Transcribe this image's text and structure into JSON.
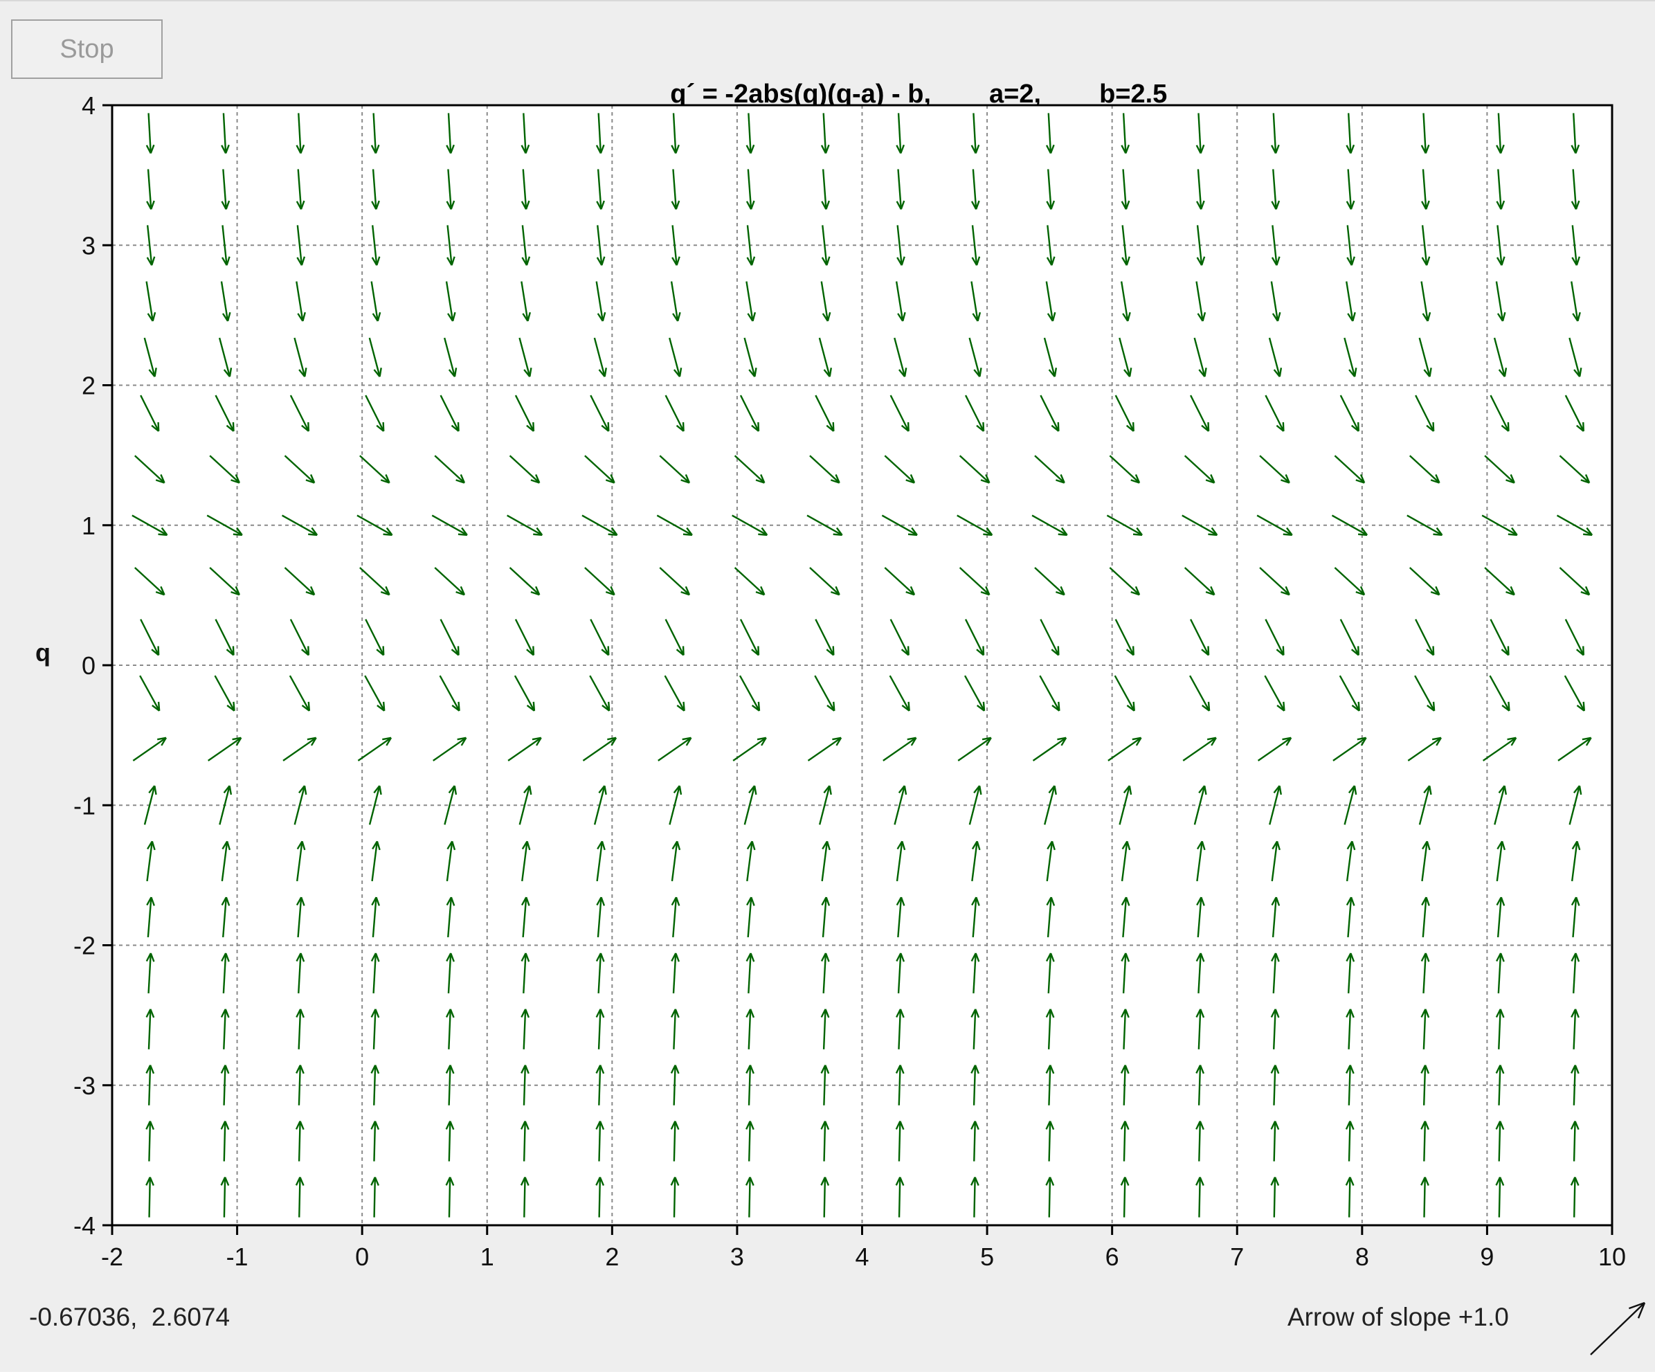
{
  "stop_button": {
    "label": "Stop"
  },
  "title": {
    "equation": "q´ = -2abs(q)(q-a) - b,",
    "param_a": "a=2,",
    "param_b": "b=2.5"
  },
  "coord_readout": "-0.67036,  2.6074",
  "slope_indicator": {
    "label": "Arrow of slope +1.0",
    "icon": "arrow-slope-icon"
  },
  "colors": {
    "arrow": "#006400",
    "grid": "#8a8a8a",
    "axis": "#000000",
    "background": "#ffffff"
  },
  "chart_data": {
    "type": "direction_field",
    "equation": "q' = -2*abs(q)*(q-a) - b",
    "parameters": {
      "a": 2,
      "b": 2.5
    },
    "xlabel": "",
    "ylabel": "q",
    "xlim": [
      -2,
      10
    ],
    "ylim": [
      -4,
      4
    ],
    "x_ticks": [
      -2,
      -1,
      0,
      1,
      2,
      3,
      4,
      5,
      6,
      7,
      8,
      9,
      10
    ],
    "y_ticks": [
      -4,
      -3,
      -2,
      -1,
      0,
      1,
      2,
      3,
      4
    ],
    "grid": true,
    "arrow_columns": 20,
    "arrow_rows": 20
  }
}
